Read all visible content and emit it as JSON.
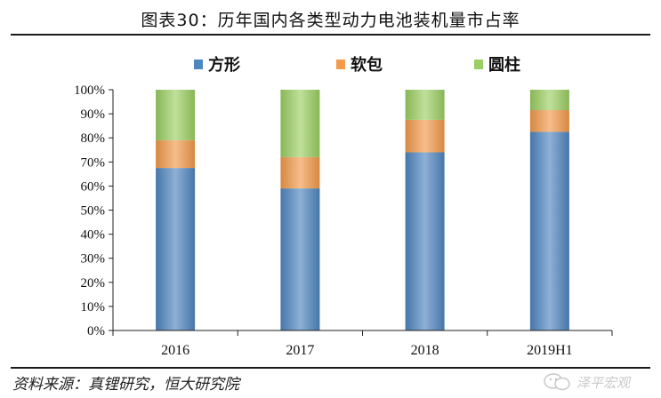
{
  "title": "图表30：历年国内各类型动力电池装机量市占率",
  "source": "资料来源：真锂研究，恒大研究院",
  "watermark": "泽平宏观",
  "chart_data": {
    "type": "bar",
    "stacked": true,
    "categories": [
      "2016",
      "2017",
      "2018",
      "2019H1"
    ],
    "series": [
      {
        "name": "方形",
        "color": "#4f86c0",
        "values": [
          67.5,
          59,
          74,
          82.5
        ]
      },
      {
        "name": "软包",
        "color": "#f39a4b",
        "values": [
          11.5,
          13,
          13.5,
          9
        ]
      },
      {
        "name": "圆柱",
        "color": "#9ccf63",
        "values": [
          21,
          28,
          12.5,
          8.5
        ]
      }
    ],
    "ylim": [
      0,
      100
    ],
    "yticks": [
      "0%",
      "10%",
      "20%",
      "30%",
      "40%",
      "50%",
      "60%",
      "70%",
      "80%",
      "90%",
      "100%"
    ],
    "ytick_values": [
      0,
      10,
      20,
      30,
      40,
      50,
      60,
      70,
      80,
      90,
      100
    ],
    "legend_position": "top",
    "grid": false
  }
}
